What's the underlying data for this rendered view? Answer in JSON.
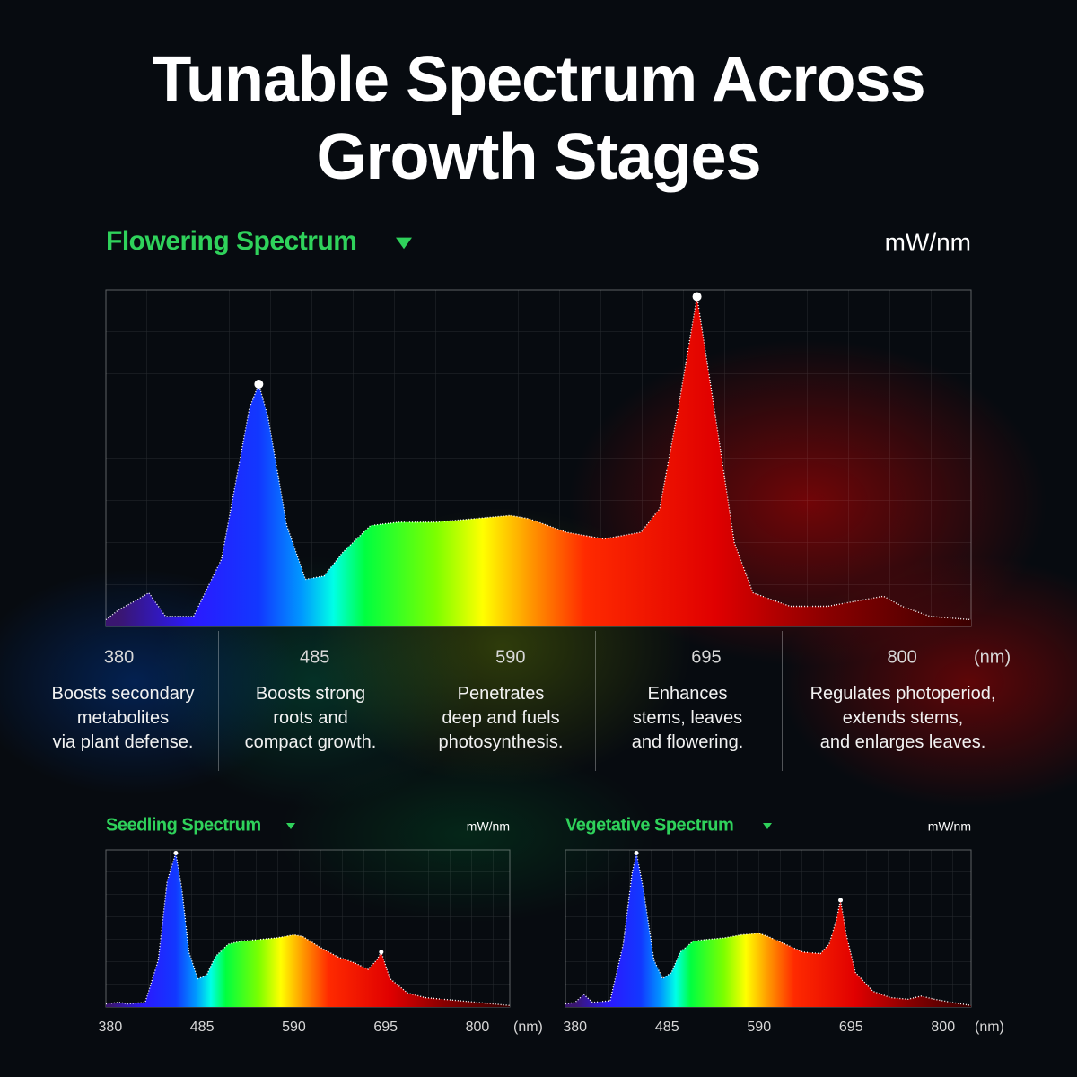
{
  "title": "Tunable Spectrum Across Growth Stages",
  "chart_data": [
    {
      "type": "area",
      "title": "Flowering Spectrum",
      "y_label": "mW/nm",
      "x_label": "(nm)",
      "x": [
        373,
        380,
        390,
        396,
        405,
        420,
        435,
        445,
        450,
        455,
        460,
        470,
        480,
        490,
        500,
        515,
        530,
        550,
        570,
        590,
        600,
        620,
        640,
        660,
        670,
        680,
        690,
        700,
        710,
        720,
        740,
        760,
        780,
        790,
        800,
        815,
        837
      ],
      "values": [
        2,
        5,
        8,
        10,
        3,
        3,
        20,
        50,
        65,
        72,
        62,
        30,
        14,
        15,
        22,
        30,
        31,
        31,
        32,
        33,
        32,
        28,
        26,
        28,
        35,
        65,
        98,
        62,
        25,
        10,
        6,
        6,
        8,
        9,
        6,
        3,
        2
      ],
      "xlim": [
        373,
        837
      ],
      "ylim": [
        0,
        100
      ],
      "xticks": [
        380,
        485,
        590,
        695,
        800
      ]
    },
    {
      "type": "area",
      "title": "Seedling Spectrum",
      "y_label": "mW/nm",
      "x_label": "(nm)",
      "x": [
        375,
        390,
        400,
        420,
        435,
        445,
        455,
        462,
        470,
        480,
        490,
        500,
        515,
        530,
        550,
        570,
        590,
        600,
        620,
        640,
        660,
        675,
        685,
        690,
        700,
        720,
        740,
        760,
        780,
        800,
        837
      ],
      "values": [
        2,
        3,
        2,
        3,
        30,
        80,
        98,
        75,
        35,
        18,
        20,
        32,
        40,
        42,
        43,
        44,
        46,
        45,
        38,
        32,
        28,
        24,
        30,
        35,
        18,
        9,
        6,
        5,
        4,
        3,
        1
      ],
      "xlim": [
        375,
        837
      ],
      "ylim": [
        0,
        100
      ],
      "xticks": [
        380,
        485,
        590,
        695,
        800
      ]
    },
    {
      "type": "area",
      "title": "Vegetative Spectrum",
      "y_label": "mW/nm",
      "x_label": "(nm)",
      "x": [
        369,
        380,
        390,
        400,
        420,
        435,
        445,
        450,
        458,
        470,
        480,
        490,
        500,
        515,
        530,
        550,
        570,
        590,
        600,
        620,
        640,
        660,
        670,
        678,
        683,
        690,
        700,
        720,
        740,
        760,
        775,
        790,
        810,
        832
      ],
      "values": [
        2,
        3,
        8,
        3,
        4,
        40,
        85,
        98,
        75,
        30,
        18,
        22,
        35,
        42,
        43,
        44,
        46,
        47,
        45,
        40,
        35,
        34,
        40,
        55,
        68,
        45,
        22,
        10,
        6,
        5,
        7,
        5,
        3,
        1
      ],
      "xlim": [
        369,
        832
      ],
      "ylim": [
        0,
        100
      ],
      "xticks": [
        380,
        485,
        590,
        695,
        800
      ]
    }
  ],
  "notes": [
    "Boosts secondary\nmetabolites\nvia plant defense.",
    "Boosts strong\nroots and\ncompact growth.",
    "Penetrates\ndeep and fuels\nphotosynthesis.",
    "Enhances\nstems, leaves\nand flowering.",
    "Regulates photoperiod,\nextends stems,\nand enlarges leaves."
  ]
}
